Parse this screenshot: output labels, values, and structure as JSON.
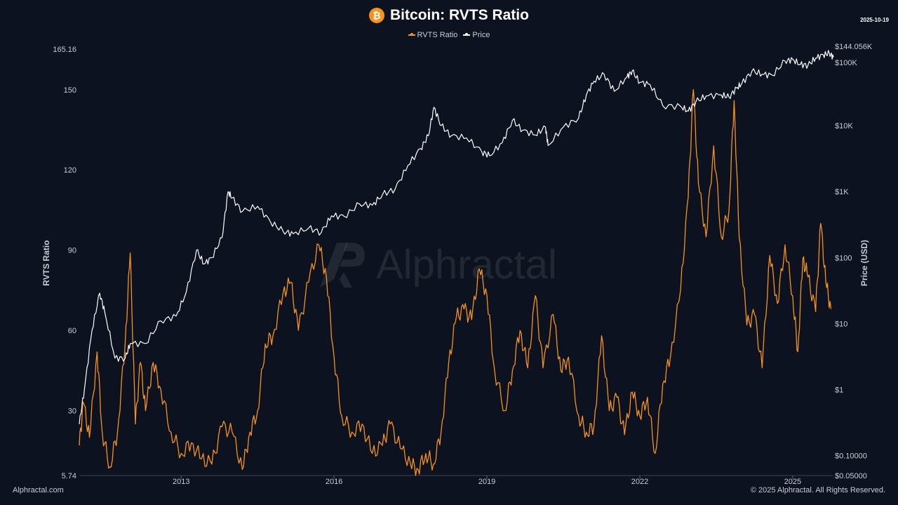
{
  "header": {
    "title": "Bitcoin: RVTS Ratio",
    "icon": "bitcoin-icon",
    "icon_glyph": "₿",
    "date": "2025-10-19"
  },
  "legend": [
    {
      "label": "RVTS Ratio",
      "color": "#f7931a"
    },
    {
      "label": "Price",
      "color": "#ffffff"
    }
  ],
  "watermark": {
    "text": "Alphractal"
  },
  "footer": {
    "left": "Alphractal.com",
    "right": "© 2025 Alphractal. All Rights Reserved."
  },
  "colors": {
    "background": "#0d1220",
    "rvts": "#f7931a",
    "price": "#ffffff",
    "axis_text": "#c9ccd4"
  },
  "chart_data": {
    "type": "line",
    "title": "Bitcoin: RVTS Ratio",
    "x_range": [
      2011.0,
      2025.8
    ],
    "x_ticks": [
      {
        "value": 2013,
        "label": "2013"
      },
      {
        "value": 2016,
        "label": "2016"
      },
      {
        "value": 2019,
        "label": "2019"
      },
      {
        "value": 2022,
        "label": "2022"
      },
      {
        "value": 2025,
        "label": "2025"
      }
    ],
    "left_axis": {
      "label": "RVTS Ratio",
      "range": [
        5.74,
        165.16
      ],
      "ticks": [
        {
          "value": 5.74,
          "label": "5.74"
        },
        {
          "value": 30,
          "label": "30"
        },
        {
          "value": 60,
          "label": "60"
        },
        {
          "value": 90,
          "label": "90"
        },
        {
          "value": 120,
          "label": "120"
        },
        {
          "value": 150,
          "label": "150"
        },
        {
          "value": 165.16,
          "label": "165.16"
        }
      ]
    },
    "right_axis": {
      "label": "Price (USD)",
      "scale": "log",
      "range": [
        0.05,
        144056
      ],
      "ticks": [
        {
          "value": 0.05,
          "label": "$0.05000"
        },
        {
          "value": 0.1,
          "label": "$0.10000"
        },
        {
          "value": 1,
          "label": "$1"
        },
        {
          "value": 10,
          "label": "$10"
        },
        {
          "value": 100,
          "label": "$100"
        },
        {
          "value": 1000,
          "label": "$1K"
        },
        {
          "value": 10000,
          "label": "$10K"
        },
        {
          "value": 100000,
          "label": "$100K"
        },
        {
          "value": 144056,
          "label": "$144.056K"
        }
      ]
    },
    "series": [
      {
        "name": "RVTS Ratio",
        "axis": "left",
        "color": "#f7931a",
        "points": [
          [
            2011.0,
            17
          ],
          [
            2011.08,
            33
          ],
          [
            2011.2,
            20
          ],
          [
            2011.35,
            52
          ],
          [
            2011.45,
            22
          ],
          [
            2011.6,
            9
          ],
          [
            2011.75,
            22
          ],
          [
            2011.9,
            55
          ],
          [
            2012.0,
            89
          ],
          [
            2012.1,
            25
          ],
          [
            2012.2,
            48
          ],
          [
            2012.3,
            30
          ],
          [
            2012.45,
            48
          ],
          [
            2012.6,
            38
          ],
          [
            2012.8,
            22
          ],
          [
            2013.0,
            14
          ],
          [
            2013.2,
            18
          ],
          [
            2013.4,
            12
          ],
          [
            2013.6,
            10
          ],
          [
            2013.8,
            24
          ],
          [
            2014.0,
            22
          ],
          [
            2014.2,
            8
          ],
          [
            2014.35,
            22
          ],
          [
            2014.5,
            30
          ],
          [
            2014.65,
            55
          ],
          [
            2014.8,
            58
          ],
          [
            2015.0,
            74
          ],
          [
            2015.15,
            78
          ],
          [
            2015.3,
            60
          ],
          [
            2015.5,
            78
          ],
          [
            2015.7,
            92
          ],
          [
            2015.85,
            80
          ],
          [
            2016.0,
            50
          ],
          [
            2016.15,
            28
          ],
          [
            2016.35,
            22
          ],
          [
            2016.55,
            25
          ],
          [
            2016.75,
            14
          ],
          [
            2016.95,
            17
          ],
          [
            2017.1,
            25
          ],
          [
            2017.3,
            16
          ],
          [
            2017.5,
            10
          ],
          [
            2017.65,
            8
          ],
          [
            2017.8,
            14
          ],
          [
            2017.95,
            10
          ],
          [
            2018.1,
            22
          ],
          [
            2018.25,
            48
          ],
          [
            2018.4,
            65
          ],
          [
            2018.55,
            68
          ],
          [
            2018.7,
            64
          ],
          [
            2018.85,
            83
          ],
          [
            2019.0,
            73
          ],
          [
            2019.15,
            45
          ],
          [
            2019.35,
            30
          ],
          [
            2019.5,
            45
          ],
          [
            2019.65,
            60
          ],
          [
            2019.8,
            46
          ],
          [
            2019.95,
            73
          ],
          [
            2020.1,
            46
          ],
          [
            2020.3,
            66
          ],
          [
            2020.45,
            45
          ],
          [
            2020.6,
            50
          ],
          [
            2020.8,
            28
          ],
          [
            2020.95,
            22
          ],
          [
            2021.1,
            24
          ],
          [
            2021.25,
            58
          ],
          [
            2021.4,
            30
          ],
          [
            2021.55,
            35
          ],
          [
            2021.7,
            21
          ],
          [
            2021.85,
            37
          ],
          [
            2022.0,
            28
          ],
          [
            2022.15,
            35
          ],
          [
            2022.3,
            14
          ],
          [
            2022.45,
            40
          ],
          [
            2022.6,
            50
          ],
          [
            2022.8,
            75
          ],
          [
            2022.95,
            110
          ],
          [
            2023.05,
            150
          ],
          [
            2023.15,
            115
          ],
          [
            2023.3,
            95
          ],
          [
            2023.45,
            129
          ],
          [
            2023.6,
            95
          ],
          [
            2023.75,
            105
          ],
          [
            2023.85,
            146
          ],
          [
            2023.95,
            95
          ],
          [
            2024.1,
            62
          ],
          [
            2024.25,
            66
          ],
          [
            2024.4,
            46
          ],
          [
            2024.55,
            88
          ],
          [
            2024.7,
            70
          ],
          [
            2024.85,
            92
          ],
          [
            2025.0,
            73
          ],
          [
            2025.1,
            52
          ],
          [
            2025.2,
            87
          ],
          [
            2025.3,
            80
          ],
          [
            2025.45,
            67
          ],
          [
            2025.55,
            100
          ],
          [
            2025.65,
            78
          ],
          [
            2025.75,
            68
          ]
        ]
      },
      {
        "name": "Price",
        "axis": "right",
        "color": "#ffffff",
        "points": [
          [
            2011.0,
            0.3
          ],
          [
            2011.1,
            1
          ],
          [
            2011.25,
            8
          ],
          [
            2011.4,
            29
          ],
          [
            2011.5,
            15
          ],
          [
            2011.7,
            3
          ],
          [
            2011.9,
            3
          ],
          [
            2012.0,
            5
          ],
          [
            2012.3,
            5
          ],
          [
            2012.6,
            11
          ],
          [
            2012.9,
            13
          ],
          [
            2013.1,
            30
          ],
          [
            2013.3,
            130
          ],
          [
            2013.45,
            80
          ],
          [
            2013.6,
            100
          ],
          [
            2013.8,
            200
          ],
          [
            2013.92,
            1000
          ],
          [
            2014.0,
            800
          ],
          [
            2014.2,
            500
          ],
          [
            2014.5,
            600
          ],
          [
            2014.75,
            350
          ],
          [
            2015.0,
            250
          ],
          [
            2015.2,
            230
          ],
          [
            2015.5,
            280
          ],
          [
            2015.75,
            240
          ],
          [
            2015.95,
            430
          ],
          [
            2016.2,
            420
          ],
          [
            2016.5,
            650
          ],
          [
            2016.75,
            620
          ],
          [
            2016.95,
            900
          ],
          [
            2017.2,
            1100
          ],
          [
            2017.45,
            2500
          ],
          [
            2017.7,
            4500
          ],
          [
            2017.85,
            7000
          ],
          [
            2017.96,
            19000
          ],
          [
            2018.1,
            10000
          ],
          [
            2018.3,
            7000
          ],
          [
            2018.6,
            6500
          ],
          [
            2018.9,
            4000
          ],
          [
            2019.05,
            3500
          ],
          [
            2019.3,
            5500
          ],
          [
            2019.5,
            12000
          ],
          [
            2019.7,
            8500
          ],
          [
            2019.95,
            7200
          ],
          [
            2020.15,
            9500
          ],
          [
            2020.2,
            5000
          ],
          [
            2020.5,
            9500
          ],
          [
            2020.8,
            13000
          ],
          [
            2020.95,
            29000
          ],
          [
            2021.1,
            47000
          ],
          [
            2021.3,
            60000
          ],
          [
            2021.5,
            33000
          ],
          [
            2021.75,
            55000
          ],
          [
            2021.85,
            67000
          ],
          [
            2022.0,
            45000
          ],
          [
            2022.2,
            42000
          ],
          [
            2022.45,
            20000
          ],
          [
            2022.8,
            19500
          ],
          [
            2022.95,
            16500
          ],
          [
            2023.1,
            23000
          ],
          [
            2023.3,
            28000
          ],
          [
            2023.6,
            29000
          ],
          [
            2023.75,
            27000
          ],
          [
            2023.9,
            37000
          ],
          [
            2024.0,
            43000
          ],
          [
            2024.2,
            67000
          ],
          [
            2024.4,
            60000
          ],
          [
            2024.6,
            58000
          ],
          [
            2024.85,
            95000
          ],
          [
            2025.0,
            100000
          ],
          [
            2025.15,
            84000
          ],
          [
            2025.3,
            82000
          ],
          [
            2025.45,
            105000
          ],
          [
            2025.6,
            118000
          ],
          [
            2025.72,
            124000
          ],
          [
            2025.8,
            108000
          ]
        ]
      }
    ]
  }
}
